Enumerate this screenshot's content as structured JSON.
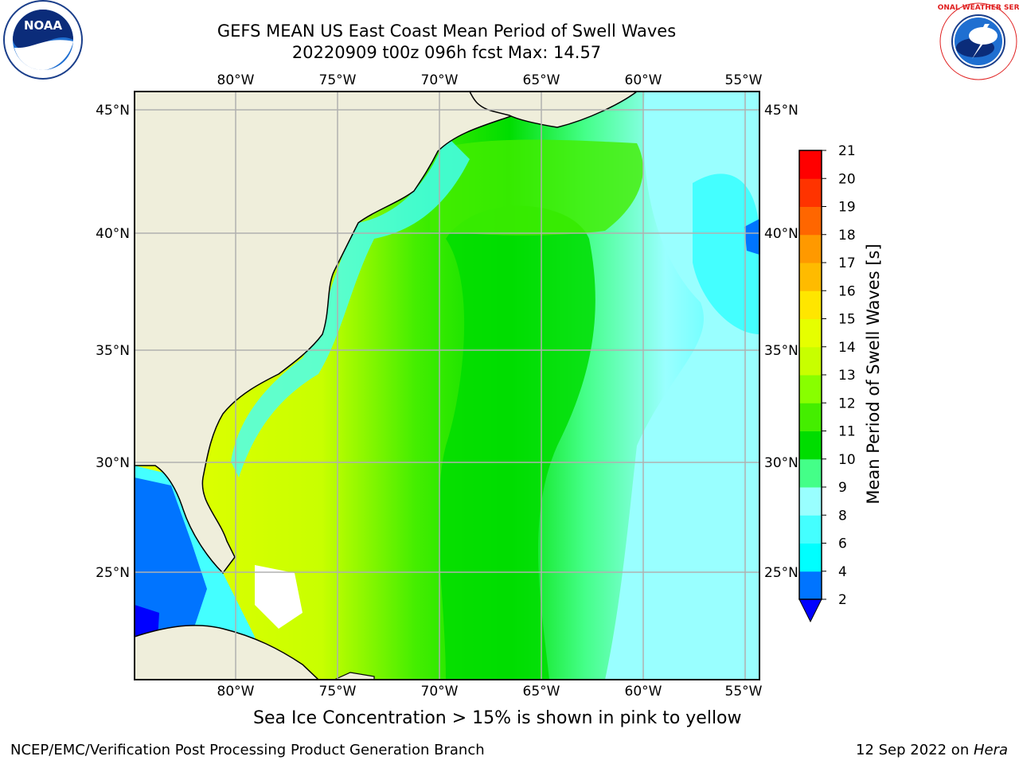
{
  "title": {
    "line1": "GEFS MEAN US East Coast Mean Period of Swell Waves",
    "line2": "20220909 t00z 096h fcst   Max: 14.57"
  },
  "map": {
    "lon_ticks": [
      "80°W",
      "75°W",
      "70°W",
      "65°W",
      "60°W",
      "55°W"
    ],
    "lat_ticks": [
      "45°N",
      "40°N",
      "35°N",
      "30°N",
      "25°N"
    ],
    "colors": {
      "land": "#efeedb",
      "grid": "#b0b0b0",
      "ocean_low": "#00ffff",
      "ocean_mid": "#00e000",
      "ocean_high": "#e6ff00"
    }
  },
  "colorbar": {
    "label": "Mean Period of Swell Waves [s]",
    "ticks": [
      "2",
      "4",
      "6",
      "8",
      "9",
      "10",
      "11",
      "12",
      "13",
      "14",
      "15",
      "16",
      "17",
      "18",
      "19",
      "20",
      "21"
    ],
    "colors": [
      "#0074ff",
      "#00ccff",
      "#00ffff",
      "#44ffff",
      "#99ffff",
      "#44ff88",
      "#00dd00",
      "#44ee00",
      "#88ff00",
      "#c8ff00",
      "#e6ff00",
      "#ffe600",
      "#ffbb00",
      "#ff9900",
      "#ff6600",
      "#ff3300",
      "#ff0000"
    ]
  },
  "extend_color": "#0000ff",
  "ice_note": "Sea Ice Concentration > 15% is shown in pink to yellow",
  "footer": {
    "left": "NCEP/EMC/Verification Post Processing Product Generation Branch",
    "right_prefix": "12 Sep 2022 on ",
    "right_host": "Hera"
  },
  "logos": {
    "noaa_text": "NOAA",
    "nws_text": "NATIONAL WEATHER SERVICE"
  }
}
